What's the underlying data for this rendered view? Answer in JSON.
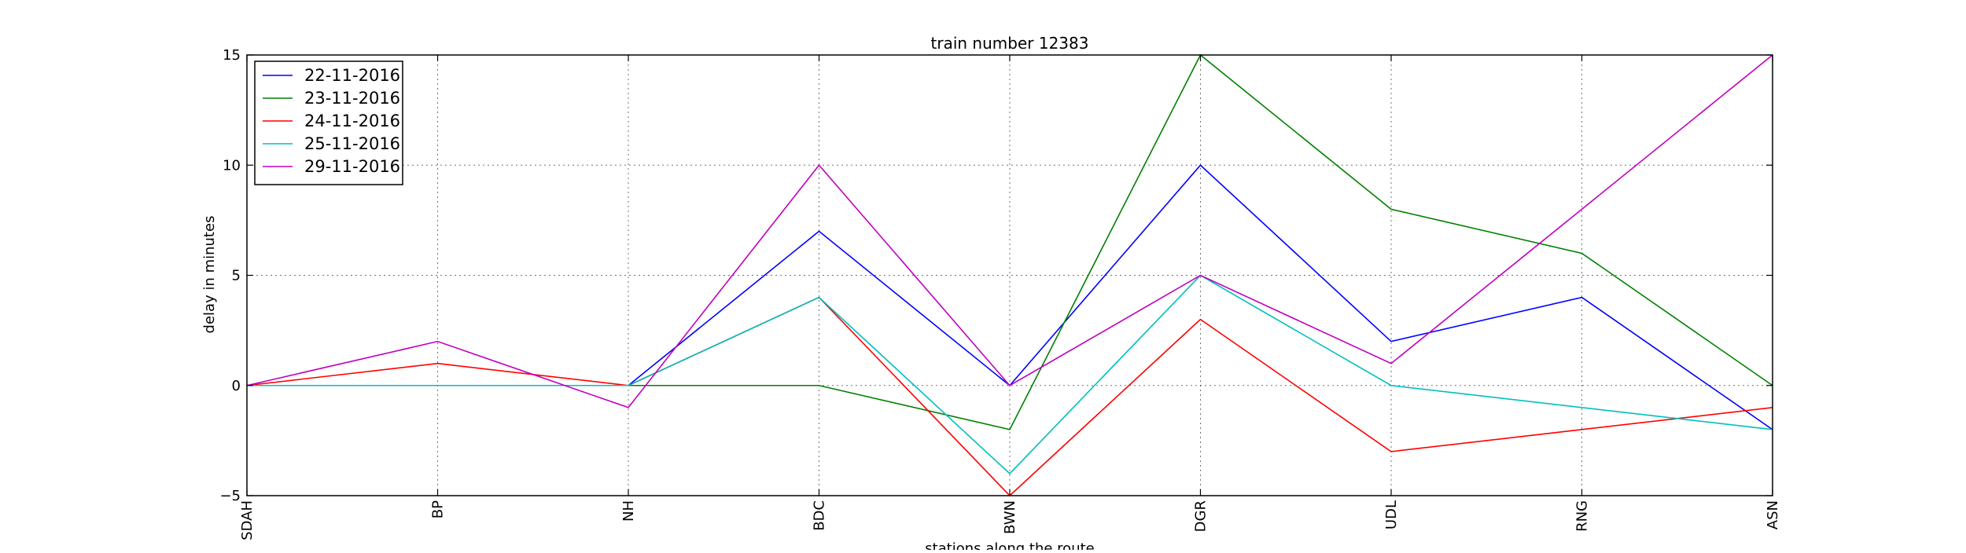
{
  "chart_data": {
    "type": "line",
    "title": "train number 12383",
    "xlabel": "stations along the route",
    "ylabel": "delay in minutes",
    "categories": [
      "SDAH",
      "BP",
      "NH",
      "BDC",
      "BWN",
      "DGR",
      "UDL",
      "RNG",
      "ASN"
    ],
    "ylim": [
      -5,
      15
    ],
    "yticks": [
      -5,
      0,
      5,
      10,
      15
    ],
    "grid": true,
    "grid_style": "dotted",
    "legend_placement": "top-left",
    "series": [
      {
        "name": "22-11-2016",
        "color": "#0000ff",
        "values": [
          0,
          0,
          0,
          7,
          0,
          10,
          2,
          4,
          -2
        ]
      },
      {
        "name": "23-11-2016",
        "color": "#008000",
        "values": [
          0,
          0,
          0,
          0,
          -2,
          15,
          8,
          6,
          0
        ]
      },
      {
        "name": "24-11-2016",
        "color": "#ff0000",
        "values": [
          0,
          1,
          0,
          4,
          -5,
          3,
          -3,
          -2,
          -1
        ]
      },
      {
        "name": "25-11-2016",
        "color": "#00bfbf",
        "values": [
          0,
          0,
          0,
          4,
          -4,
          5,
          0,
          -1,
          -2
        ]
      },
      {
        "name": "29-11-2016",
        "color": "#bf00bf",
        "values": [
          0,
          2,
          -1,
          10,
          0,
          5,
          1,
          8,
          15
        ]
      }
    ]
  }
}
